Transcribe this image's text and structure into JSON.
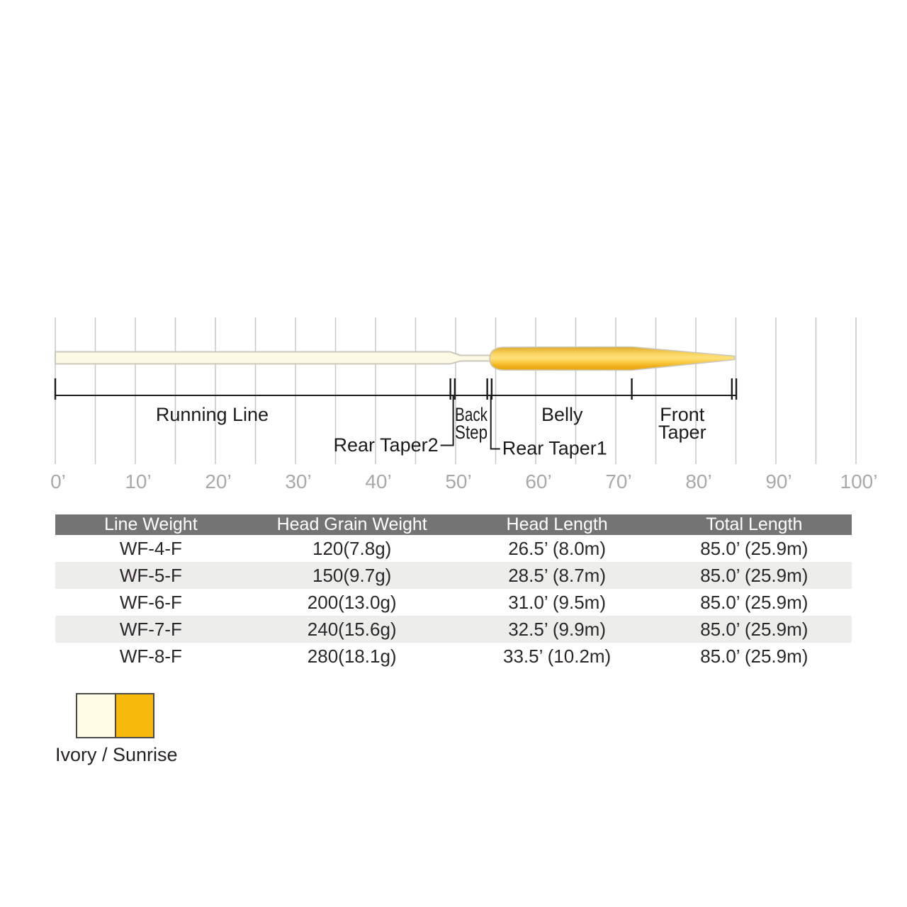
{
  "chart_data": {
    "type": "area",
    "title": "Weight-forward floating fly line taper profile",
    "x_axis": {
      "unit": "feet",
      "min_ft": 0,
      "max_ft": 100,
      "grid_step_ft": 5,
      "label_step_ft": 10,
      "tick_labels": [
        "0’",
        "10’",
        "20’",
        "30’",
        "40’",
        "50’",
        "60’",
        "70’",
        "80’",
        "90’",
        "100’"
      ],
      "grid_color": "#c7c7c7",
      "label_color": "#a9a9a9"
    },
    "profile": {
      "total_length_ft": 85.0,
      "running_line_color_name": "Ivory",
      "head_color_name": "Sunrise",
      "segments": [
        {
          "label": "Running Line",
          "start_ft": 0,
          "end_ft": 49.3,
          "color_hex": "#fcf9e4"
        },
        {
          "label": "Rear Taper2",
          "start_ft": 49.3,
          "end_ft": 50.6,
          "color_hex": "#fcf9e4"
        },
        {
          "label": "Back Step",
          "start_ft": 50.6,
          "end_ft": 54.0,
          "color_hex": "#fcf9e4"
        },
        {
          "label": "Rear Taper1",
          "start_ft": 54.0,
          "end_ft": 55.9,
          "color_hex": "#f8bb0d"
        },
        {
          "label": "Belly",
          "start_ft": 55.9,
          "end_ft": 72.0,
          "color_hex": "#f8bb0d"
        },
        {
          "label": "Front Taper",
          "start_ft": 72.0,
          "end_ft": 85.0,
          "color_hex": "#f8bb0d"
        }
      ]
    },
    "bracket_ticks_ft": [
      0,
      49.35,
      49.9,
      53.95,
      54.5,
      72,
      84.5,
      85.05
    ],
    "bracket_labels": [
      {
        "lines": [
          "Running Line"
        ],
        "x_ft": 19.6,
        "narrow": false
      },
      {
        "lines": [
          "Back",
          "Step"
        ],
        "x_ft": 51.95,
        "narrow": true
      },
      {
        "lines": [
          "Belly"
        ],
        "x_ft": 63.3,
        "narrow": false
      },
      {
        "lines": [
          "Front",
          "Taper"
        ],
        "x_ft": 78.3,
        "narrow": false
      }
    ],
    "leader_labels": [
      {
        "text": "Rear Taper2",
        "attach_ft": 49.7,
        "side": "left"
      },
      {
        "text": "Rear Taper1",
        "attach_ft": 54.4,
        "side": "right"
      }
    ]
  },
  "table": {
    "header_bg_hex": "#747474",
    "stripe_bg_hex": "#edeeec",
    "columns": [
      "Line Weight",
      "Head Grain Weight",
      "Head Length",
      "Total Length"
    ],
    "rows": [
      [
        "WF-4-F",
        "120(7.8g)",
        "26.5’ (8.0m)",
        "85.0’ (25.9m)"
      ],
      [
        "WF-5-F",
        "150(9.7g)",
        "28.5’ (8.7m)",
        "85.0’ (25.9m)"
      ],
      [
        "WF-6-F",
        "200(13.0g)",
        "31.0’ (9.5m)",
        "85.0’ (25.9m)"
      ],
      [
        "WF-7-F",
        "240(15.6g)",
        "32.5’ (9.9m)",
        "85.0’ (25.9m)"
      ],
      [
        "WF-8-F",
        "280(18.1g)",
        "33.5’ (10.2m)",
        "85.0’ (25.9m)"
      ]
    ]
  },
  "swatch": {
    "caption": "Ivory / Sunrise",
    "colors": [
      {
        "name": "Ivory",
        "hex": "#fffbe4"
      },
      {
        "name": "Sunrise",
        "hex": "#f8bb0d"
      }
    ]
  }
}
